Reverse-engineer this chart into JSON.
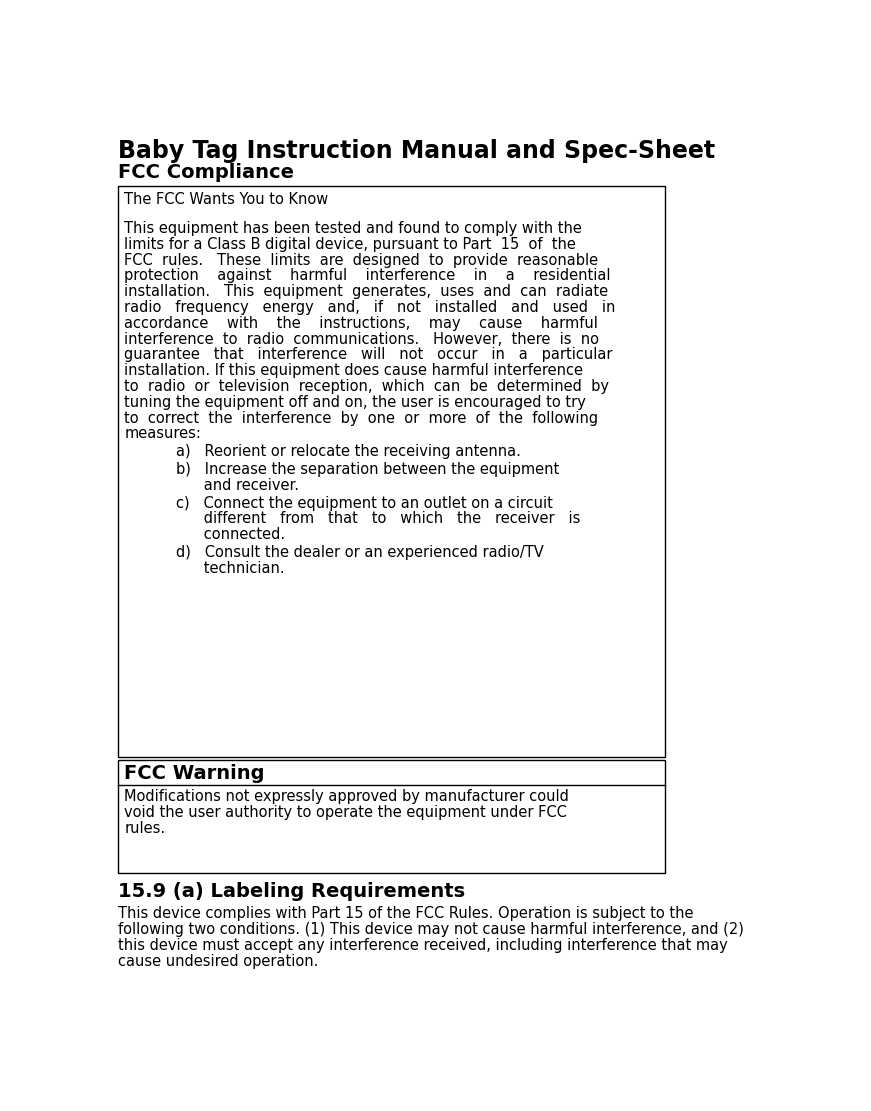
{
  "title": "Baby Tag Instruction Manual and Spec-Sheet",
  "subtitle": "FCC Compliance",
  "box1_header": "The FCC Wants You to Know",
  "box1_body_lines": [
    "This equipment has been tested and found to comply with the",
    "limits for a Class B digital device, pursuant to Part  15  of  the",
    "FCC  rules.   These  limits  are  designed  to  provide  reasonable",
    "protection    against    harmful    interference    in    a    residential",
    "installation.   This  equipment  generates,  uses  and  can  radiate",
    "radio   frequency   energy   and,   if   not   installed   and   used   in",
    "accordance    with    the    instructions,    may    cause    harmful",
    "interference  to  radio  communications.   However,  there  is  no",
    "guarantee   that   interference   will   not   occur   in   a   particular",
    "installation. If this equipment does cause harmful interference",
    "to  radio  or  television  reception,  which  can  be  determined  by",
    "tuning the equipment off and on, the user is encouraged to try",
    "to  correct  the  interference  by  one  or  more  of  the  following",
    "measures:"
  ],
  "list_items": [
    [
      "a)   Reorient or relocate the receiving antenna."
    ],
    [
      "b)   Increase the separation between the equipment",
      "      and receiver."
    ],
    [
      "c)   Connect the equipment to an outlet on a circuit",
      "      different   from   that   to   which   the   receiver   is",
      "      connected."
    ],
    [
      "d)   Consult the dealer or an experienced radio/TV",
      "      technician."
    ]
  ],
  "box2_header": "FCC Warning",
  "box2_body_lines": [
    "Modifications not expressly approved by manufacturer could",
    "void the user authority to operate the equipment under FCC",
    "rules."
  ],
  "section3_header": "15.9 (a) Labeling Requirements",
  "section3_body_lines": [
    "This device complies with Part 15 of the FCC Rules. Operation is subject to the",
    "following two conditions. (1) This device may not cause harmful interference, and (2)",
    "this device must accept any interference received, including interference that may",
    "cause undesired operation."
  ],
  "bg_color": "#ffffff",
  "text_color": "#000000",
  "box_border_color": "#000000"
}
